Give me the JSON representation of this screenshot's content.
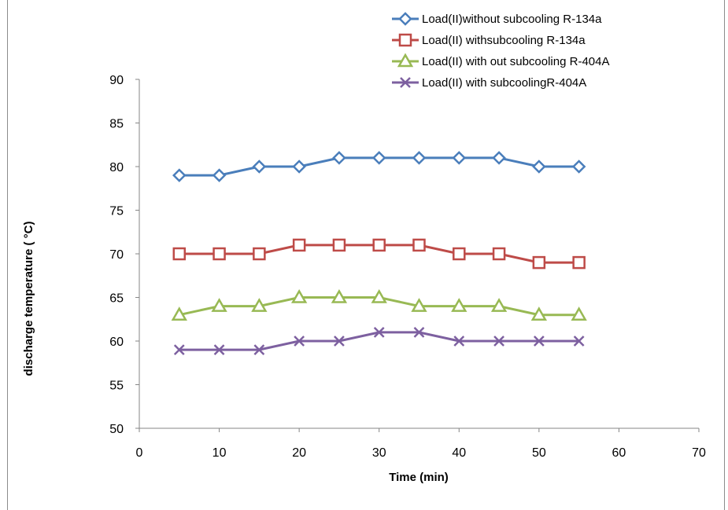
{
  "chart_data": {
    "type": "line",
    "title": "",
    "xlabel": "Time (min)",
    "ylabel": "discharge temperature ( °C)",
    "xlim": [
      0,
      70
    ],
    "ylim": [
      50,
      90
    ],
    "x_ticks": [
      0,
      10,
      20,
      30,
      40,
      50,
      60,
      70
    ],
    "y_ticks": [
      50,
      55,
      60,
      65,
      70,
      75,
      80,
      85,
      90
    ],
    "grid": false,
    "legend_position": "top-right",
    "x": [
      5,
      10,
      15,
      20,
      25,
      30,
      35,
      40,
      45,
      50,
      55
    ],
    "series": [
      {
        "name": "Load(II)without subcooling R-134a",
        "color": "#4a7ebb",
        "marker": "diamond",
        "values": [
          79,
          79,
          80,
          80,
          81,
          81,
          81,
          81,
          81,
          80,
          80
        ]
      },
      {
        "name": "Load(II) withsubcooling R-134a",
        "color": "#be4b48",
        "marker": "square",
        "values": [
          70,
          70,
          70,
          71,
          71,
          71,
          71,
          70,
          70,
          69,
          69
        ]
      },
      {
        "name": "Load(II) with out subcooling R-404A",
        "color": "#98b954",
        "marker": "triangle",
        "values": [
          63,
          64,
          64,
          65,
          65,
          65,
          64,
          64,
          64,
          63,
          63
        ]
      },
      {
        "name": "Load(II) with subcoolingR-404A",
        "color": "#7d60a0",
        "marker": "x",
        "values": [
          59,
          59,
          59,
          60,
          60,
          61,
          61,
          60,
          60,
          60,
          60
        ]
      }
    ]
  }
}
